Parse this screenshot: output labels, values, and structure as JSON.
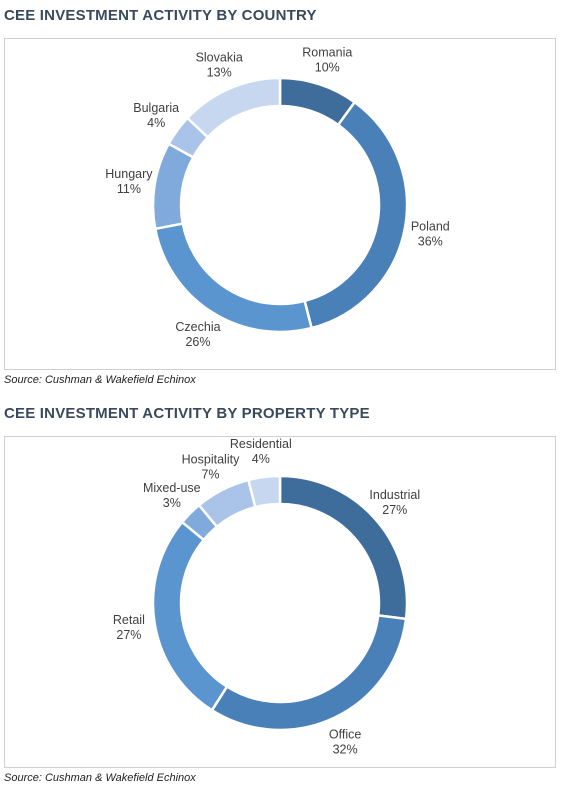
{
  "chart_data": [
    {
      "type": "pie",
      "title": "CEE INVESTMENT ACTIVITY BY COUNTRY",
      "source": "Source: Cushman & Wakefield Echinox",
      "donut": true,
      "slices": [
        {
          "label": "Romania",
          "value": 10,
          "display": "10%",
          "color": "#3e6d9c"
        },
        {
          "label": "Poland",
          "value": 36,
          "display": "36%",
          "color": "#4a80b8"
        },
        {
          "label": "Czechia",
          "value": 26,
          "display": "26%",
          "color": "#5a95cf"
        },
        {
          "label": "Hungary",
          "value": 11,
          "display": "11%",
          "color": "#80aadc"
        },
        {
          "label": "Bulgaria",
          "value": 4,
          "display": "4%",
          "color": "#a9c4e8"
        },
        {
          "label": "Slovakia",
          "value": 13,
          "display": "13%",
          "color": "#c6d7ef"
        }
      ]
    },
    {
      "type": "pie",
      "title": "CEE INVESTMENT ACTIVITY BY PROPERTY TYPE",
      "source": "Source: Cushman & Wakefield Echinox",
      "donut": true,
      "slices": [
        {
          "label": "Industrial",
          "value": 27,
          "display": "27%",
          "color": "#3e6d9c"
        },
        {
          "label": "Office",
          "value": 32,
          "display": "32%",
          "color": "#4a80b8"
        },
        {
          "label": "Retail",
          "value": 27,
          "display": "27%",
          "color": "#5a95cf"
        },
        {
          "label": "Mixed-use",
          "value": 3,
          "display": "3%",
          "color": "#80aadc"
        },
        {
          "label": "Hospitality",
          "value": 7,
          "display": "7%",
          "color": "#a9c4e8"
        },
        {
          "label": "Residential",
          "value": 4,
          "display": "4%",
          "color": "#c6d7ef"
        }
      ]
    }
  ]
}
